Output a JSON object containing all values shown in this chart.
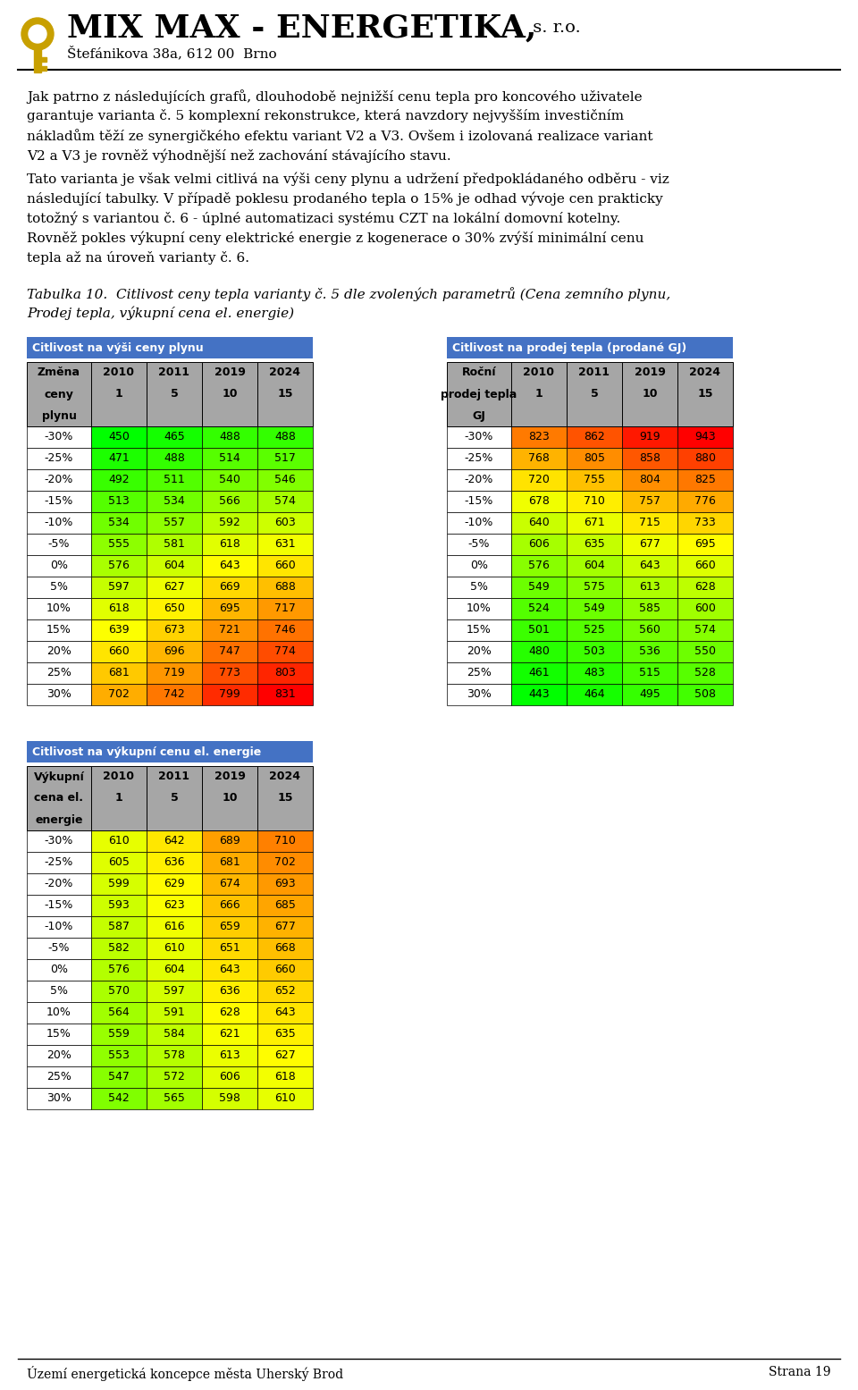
{
  "title_company": "MIX MAX - ENERGETIKA,",
  "title_sro": " s. r.o.",
  "subtitle": "Štefánikova 38a, 612 00  Brno",
  "paragraph1": "Jak patrno z následujících grafů, dlouhodobě nejnižší cenu tepla pro koncového uživatele\ngarantuje varianta č. 5 komplexní rekonstrukce, která navzdory nejvyšším investičním\nnákladům těží ze synergičkého efektu variant V2 a V3. Ovšem i izolovaná realizace variant\nV2 a V3 je rovněž výhodnější než zachování stávajícího stavu.",
  "paragraph2": "Tato varianta je však velmi citlivá na výši ceny plynu a udržení předpokládaného odběru - viz\nnásledující tabulky. V případě poklesu prodaného tepla o 15% je odhad vývoje cen prakticky\ntotožný s variantou č. 6 - úplné automatizaci systému CZT na lokální domovní kotelny.",
  "paragraph3": "Rovněž pokles výkupní ceny elektrické energie z kogenerace o 30% zvýší minimální cenu\ntepla až na úroveň varianty č. 6.",
  "table_caption": "Tabulka 10.  Citlivost ceny tepla varianty č. 5 dle zvolených parametrů (Cena zemního plynu,\nProdej tepla, výkupní cena el. energie)",
  "table1_header": "Citlivost na výši ceny plynu",
  "table2_header": "Citlivost na prodej tepla (prodané GJ)",
  "table3_header": "Citlivost na výkupní cenu el. energie",
  "col_headers_1": [
    [
      "Změna",
      "ceny",
      "plynu"
    ],
    [
      "2010",
      "1"
    ],
    [
      "2011",
      "5"
    ],
    [
      "2019",
      "10"
    ],
    [
      "2024",
      "15"
    ]
  ],
  "col_headers_2": [
    [
      "Roční",
      "prodej tepla",
      "GJ"
    ],
    [
      "2010",
      "1"
    ],
    [
      "2011",
      "5"
    ],
    [
      "2019",
      "10"
    ],
    [
      "2024",
      "15"
    ]
  ],
  "col_headers_3": [
    [
      "Výkupní",
      "cena el.",
      "energie"
    ],
    [
      "2010",
      "1"
    ],
    [
      "2011",
      "5"
    ],
    [
      "2019",
      "10"
    ],
    [
      "2024",
      "15"
    ]
  ],
  "row_labels": [
    "-30%",
    "-25%",
    "-20%",
    "-15%",
    "-10%",
    "-5%",
    "0%",
    "5%",
    "10%",
    "15%",
    "20%",
    "25%",
    "30%"
  ],
  "table1_data": [
    [
      450,
      465,
      488,
      488
    ],
    [
      471,
      488,
      514,
      517
    ],
    [
      492,
      511,
      540,
      546
    ],
    [
      513,
      534,
      566,
      574
    ],
    [
      534,
      557,
      592,
      603
    ],
    [
      555,
      581,
      618,
      631
    ],
    [
      576,
      604,
      643,
      660
    ],
    [
      597,
      627,
      669,
      688
    ],
    [
      618,
      650,
      695,
      717
    ],
    [
      639,
      673,
      721,
      746
    ],
    [
      660,
      696,
      747,
      774
    ],
    [
      681,
      719,
      773,
      803
    ],
    [
      702,
      742,
      799,
      831
    ]
  ],
  "table2_data": [
    [
      823,
      862,
      919,
      943
    ],
    [
      768,
      805,
      858,
      880
    ],
    [
      720,
      755,
      804,
      825
    ],
    [
      678,
      710,
      757,
      776
    ],
    [
      640,
      671,
      715,
      733
    ],
    [
      606,
      635,
      677,
      695
    ],
    [
      576,
      604,
      643,
      660
    ],
    [
      549,
      575,
      613,
      628
    ],
    [
      524,
      549,
      585,
      600
    ],
    [
      501,
      525,
      560,
      574
    ],
    [
      480,
      503,
      536,
      550
    ],
    [
      461,
      483,
      515,
      528
    ],
    [
      443,
      464,
      495,
      508
    ]
  ],
  "table3_data": [
    [
      610,
      642,
      689,
      710
    ],
    [
      605,
      636,
      681,
      702
    ],
    [
      599,
      629,
      674,
      693
    ],
    [
      593,
      623,
      666,
      685
    ],
    [
      587,
      616,
      659,
      677
    ],
    [
      582,
      610,
      651,
      668
    ],
    [
      576,
      604,
      643,
      660
    ],
    [
      570,
      597,
      636,
      652
    ],
    [
      564,
      591,
      628,
      643
    ],
    [
      559,
      584,
      621,
      635
    ],
    [
      553,
      578,
      613,
      627
    ],
    [
      547,
      572,
      606,
      618
    ],
    [
      542,
      565,
      598,
      610
    ]
  ],
  "footer_left": "Území energetická koncepce města Uherský Brod",
  "footer_right": "Strana 19",
  "header_bg": "#4472C4",
  "header_text_color": "#FFFFFF",
  "col_header_bg": "#A6A6A6",
  "col_header_text": "#000000",
  "row_label_bg": "#FFFFFF",
  "border_color": "#000000"
}
